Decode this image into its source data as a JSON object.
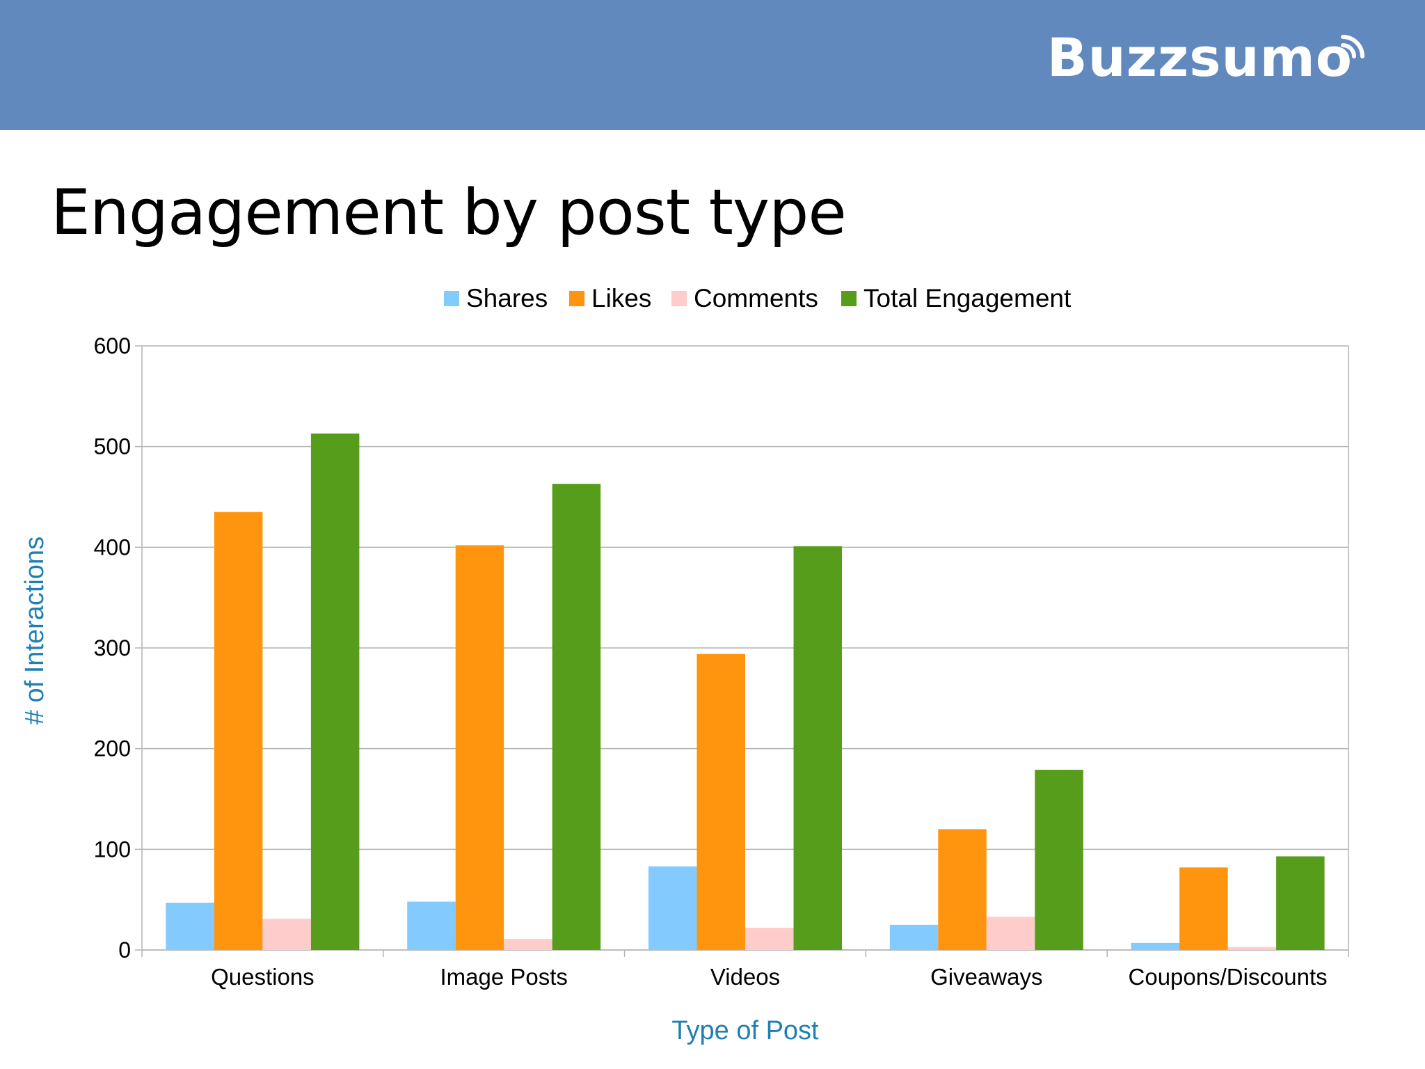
{
  "brand": {
    "name": "Buzzsumo",
    "icon": "signal-waves-icon",
    "header_color": "#6189bd"
  },
  "slide": {
    "title": "Engagement by post type"
  },
  "chart_data": {
    "type": "bar",
    "title": "",
    "xlabel": "Type of Post",
    "ylabel": "# of Interactions",
    "ylim": [
      0,
      600
    ],
    "yticks": [
      0,
      100,
      200,
      300,
      400,
      500,
      600
    ],
    "grid": true,
    "legend_position": "top",
    "categories": [
      "Questions",
      "Image Posts",
      "Videos",
      "Giveaways",
      "Coupons/Discounts"
    ],
    "series": [
      {
        "name": "Shares",
        "color": "#83caff",
        "values": [
          47,
          48,
          83,
          25,
          7
        ]
      },
      {
        "name": "Likes",
        "color": "#ff950e",
        "values": [
          435,
          402,
          294,
          120,
          82
        ]
      },
      {
        "name": "Comments",
        "color": "#ffcccc",
        "values": [
          31,
          11,
          22,
          33,
          3
        ]
      },
      {
        "name": "Total Engagement",
        "color": "#579d1c",
        "values": [
          513,
          463,
          401,
          179,
          93
        ]
      }
    ]
  }
}
